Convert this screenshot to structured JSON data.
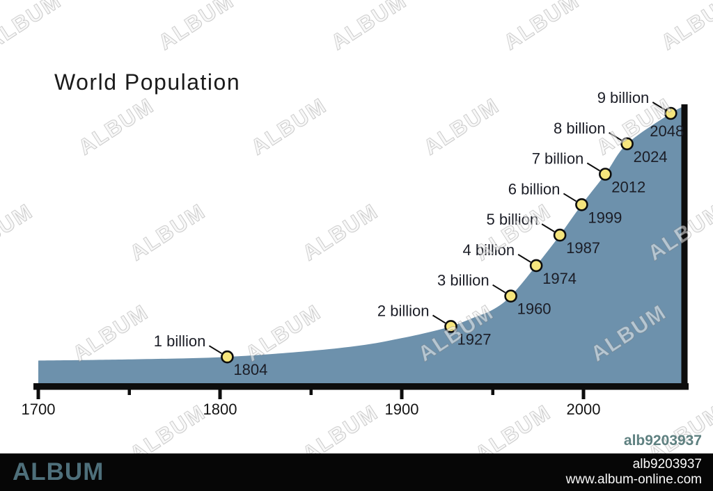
{
  "title": "World Population",
  "watermark": {
    "text": "ALBUM"
  },
  "corner_id": "alb9203937",
  "footer": {
    "brand": "ALBUM",
    "item_id": "alb9203937",
    "url": "www.album-online.com"
  },
  "chart_data": {
    "type": "area",
    "title": "World Population",
    "xlabel": "",
    "ylabel": "",
    "x_range": [
      1700,
      2056
    ],
    "y_range_billions": [
      0,
      9.5
    ],
    "x_ticks_major": [
      1700,
      1800,
      1900,
      2000
    ],
    "x_ticks_minor": [
      1750,
      1850,
      1950
    ],
    "grid": "off",
    "legend": "none",
    "colors": {
      "area_fill": "#6d91ac",
      "axis": "#0d0d0d",
      "dot_fill": "#f5e57d",
      "dot_stroke": "#0d0d0d",
      "label_text": "#1b1d26",
      "tick_text": "#141414"
    },
    "milestones": [
      {
        "value_label": "1 billion",
        "year": "1804",
        "year_num": 1804,
        "billions": 1
      },
      {
        "value_label": "2 billion",
        "year": "1927",
        "year_num": 1927,
        "billions": 2
      },
      {
        "value_label": "3 billion",
        "year": "1960",
        "year_num": 1960,
        "billions": 3
      },
      {
        "value_label": "4 billion",
        "year": "1974",
        "year_num": 1974,
        "billions": 4
      },
      {
        "value_label": "5 billion",
        "year": "1987",
        "year_num": 1987,
        "billions": 5
      },
      {
        "value_label": "6 billion",
        "year": "1999",
        "year_num": 1999,
        "billions": 6
      },
      {
        "value_label": "7 billion",
        "year": "2012",
        "year_num": 2012,
        "billions": 7
      },
      {
        "value_label": "8 billion",
        "year": "2024",
        "year_num": 2024,
        "billions": 8
      },
      {
        "value_label": "9 billion",
        "year": "2048",
        "year_num": 2048,
        "billions": 9
      }
    ],
    "curve": [
      [
        1700,
        0.88
      ],
      [
        1730,
        0.9
      ],
      [
        1760,
        0.93
      ],
      [
        1804,
        1.0
      ],
      [
        1850,
        1.2
      ],
      [
        1880,
        1.4
      ],
      [
        1900,
        1.62
      ],
      [
        1914,
        1.8
      ],
      [
        1927,
        2.0
      ],
      [
        1940,
        2.3
      ],
      [
        1950,
        2.55
      ],
      [
        1960,
        3.0
      ],
      [
        1974,
        4.0
      ],
      [
        1987,
        5.0
      ],
      [
        1999,
        6.0
      ],
      [
        2012,
        7.0
      ],
      [
        2024,
        8.0
      ],
      [
        2048,
        9.0
      ],
      [
        2056,
        9.25
      ]
    ]
  }
}
